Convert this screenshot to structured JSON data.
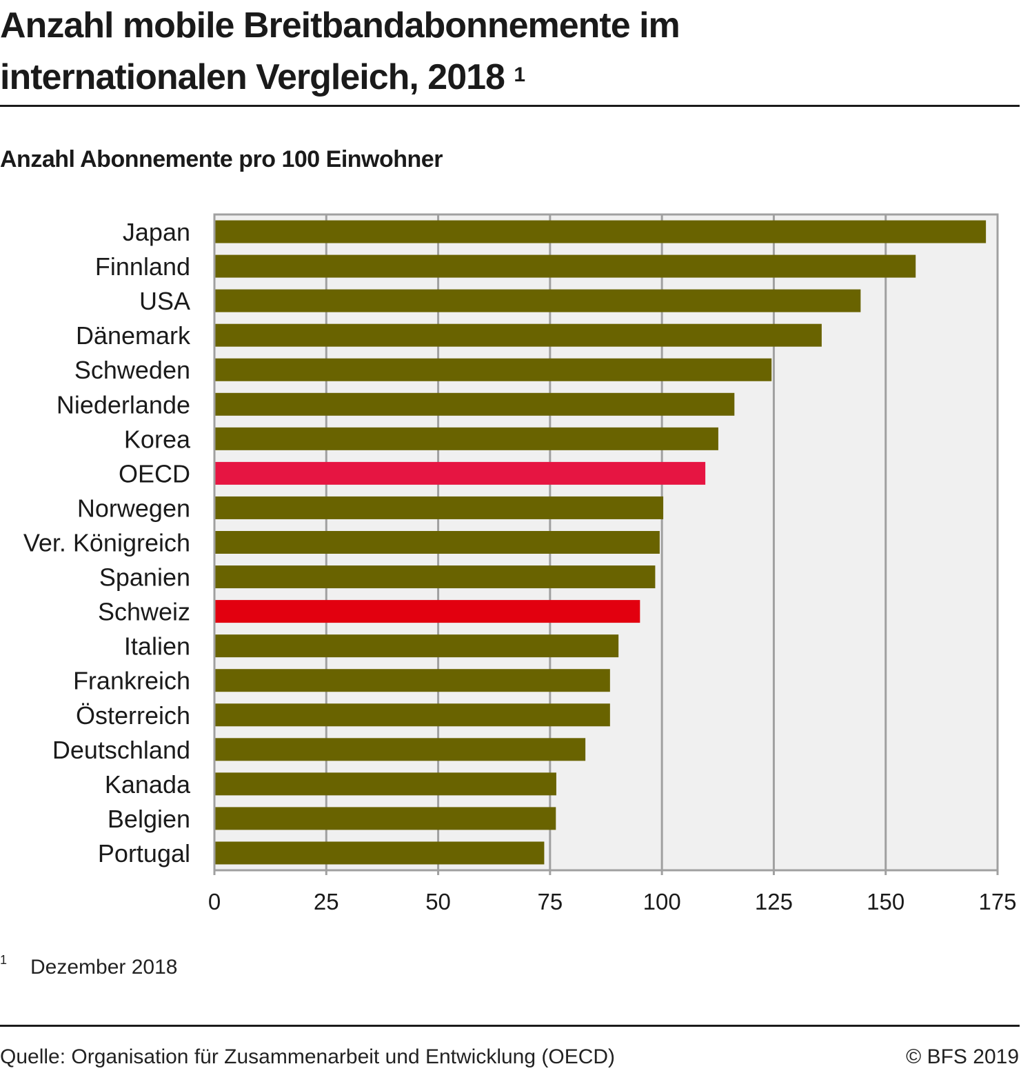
{
  "header": {
    "title_line1": "Anzahl mobile Breitbandabonnemente im",
    "title_line2": "internationalen Vergleich, 2018",
    "title_footnote_ref": "1",
    "subtitle": "Anzahl Abonnemente pro 100 Einwohner"
  },
  "footer": {
    "footnote_mark": "1",
    "footnote_text": "Dezember 2018",
    "source": "Quelle: Organisation für Zusammenarbeit und Entwicklung (OECD)",
    "copyright": "© BFS 2019"
  },
  "colors": {
    "default_bar": "#696300",
    "oecd_bar": "#e61542",
    "switzerland_bar": "#e2000f",
    "plot_background": "#f0f0f0",
    "grid": "#a0a0a0"
  },
  "chart_data": {
    "type": "bar",
    "orientation": "horizontal",
    "title": "Anzahl mobile Breitbandabonnemente im internationalen Vergleich, 2018",
    "subtitle": "Anzahl Abonnemente pro 100 Einwohner",
    "xlabel": "",
    "ylabel": "",
    "xlim": [
      0,
      175
    ],
    "xticks": [
      0,
      25,
      50,
      75,
      100,
      125,
      150,
      175
    ],
    "grid": true,
    "legend": "none",
    "categories": [
      "Japan",
      "Finnland",
      "USA",
      "Dänemark",
      "Schweden",
      "Niederlande",
      "Korea",
      "OECD",
      "Norwegen",
      "Ver. Königreich",
      "Spanien",
      "Schweiz",
      "Italien",
      "Frankreich",
      "Österreich",
      "Deutschland",
      "Kanada",
      "Belgien",
      "Portugal"
    ],
    "values": [
      172.4,
      156.7,
      144.4,
      135.7,
      124.5,
      116.2,
      112.6,
      109.7,
      100.3,
      99.5,
      98.5,
      95.1,
      90.3,
      88.4,
      88.4,
      82.9,
      76.4,
      76.3,
      73.7
    ],
    "highlight": {
      "OECD": "oecd_bar",
      "Schweiz": "switzerland_bar"
    }
  }
}
